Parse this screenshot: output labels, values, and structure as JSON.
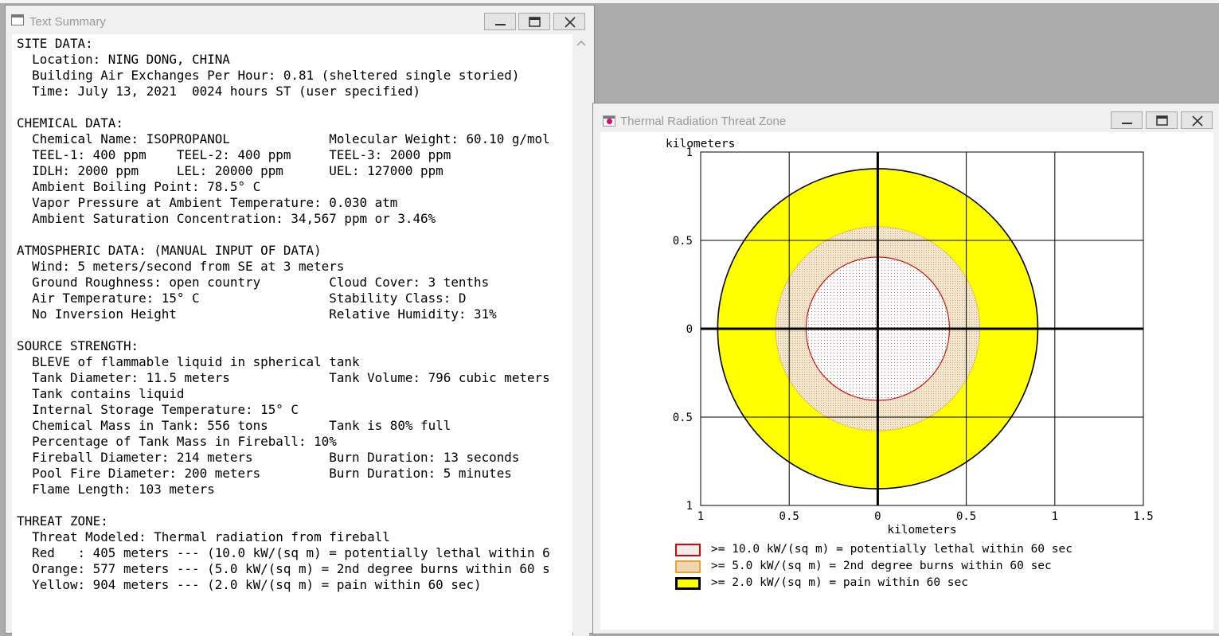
{
  "text_window": {
    "title": "Text Summary",
    "lines": [
      "SITE DATA:",
      "  Location: NING DONG, CHINA",
      "  Building Air Exchanges Per Hour: 0.81 (sheltered single storied)",
      "  Time: July 13, 2021  0024 hours ST (user specified)",
      "",
      "CHEMICAL DATA:",
      "  Chemical Name: ISOPROPANOL             Molecular Weight: 60.10 g/mol",
      "  TEEL-1: 400 ppm    TEEL-2: 400 ppm     TEEL-3: 2000 ppm",
      "  IDLH: 2000 ppm     LEL: 20000 ppm      UEL: 127000 ppm",
      "  Ambient Boiling Point: 78.5° C",
      "  Vapor Pressure at Ambient Temperature: 0.030 atm",
      "  Ambient Saturation Concentration: 34,567 ppm or 3.46%",
      "",
      "ATMOSPHERIC DATA: (MANUAL INPUT OF DATA)",
      "  Wind: 5 meters/second from SE at 3 meters",
      "  Ground Roughness: open country         Cloud Cover: 3 tenths",
      "  Air Temperature: 15° C                 Stability Class: D",
      "  No Inversion Height                    Relative Humidity: 31%",
      "",
      "SOURCE STRENGTH:",
      "  BLEVE of flammable liquid in spherical tank",
      "  Tank Diameter: 11.5 meters             Tank Volume: 796 cubic meters",
      "  Tank contains liquid",
      "  Internal Storage Temperature: 15° C",
      "  Chemical Mass in Tank: 556 tons        Tank is 80% full",
      "  Percentage of Tank Mass in Fireball: 10%",
      "  Fireball Diameter: 214 meters          Burn Duration: 13 seconds",
      "  Pool Fire Diameter: 200 meters         Burn Duration: 5 minutes",
      "  Flame Length: 103 meters",
      "",
      "THREAT ZONE:",
      "  Threat Modeled: Thermal radiation from fireball",
      "  Red   : 405 meters --- (10.0 kW/(sq m) = potentially lethal within 6",
      "  Orange: 577 meters --- (5.0 kW/(sq m) = 2nd degree burns within 60 s",
      "  Yellow: 904 meters --- (2.0 kW/(sq m) = pain within 60 sec)"
    ]
  },
  "thermal_window": {
    "title": "Thermal Radiation Threat Zone",
    "y_axis_label": "kilometers",
    "x_axis_label": "kilometers",
    "y_tick_labels": [
      "1",
      "0.5",
      "0",
      "0.5",
      "1"
    ],
    "x_tick_labels": [
      "1",
      "0.5",
      "0",
      "0.5",
      "1",
      "1.5"
    ],
    "legend": [
      {
        "label": ">= 10.0 kW/(sq m) = potentially lethal within 60 sec",
        "color": "#e00000",
        "fill": "#f7eaea"
      },
      {
        "label": ">= 5.0 kW/(sq m) = 2nd degree burns within 60 sec",
        "color": "#f0a030",
        "fill": "#ecd9b0"
      },
      {
        "label": ">= 2.0 kW/(sq m) = pain within 60 sec",
        "color": "#000000",
        "fill": "#ffff00"
      }
    ]
  },
  "chart_data": {
    "type": "area",
    "xlabel": "kilometers",
    "ylabel": "kilometers",
    "xlim": [
      -1,
      1.5
    ],
    "ylim": [
      -1,
      1
    ],
    "grid": true,
    "series": [
      {
        "name": ">= 2.0 kW/(sq m) = pain within 60 sec",
        "radius_km": 0.904,
        "center": [
          0,
          0
        ],
        "color": "#ffff00"
      },
      {
        "name": ">= 5.0 kW/(sq m) = 2nd degree burns within 60 sec",
        "radius_km": 0.577,
        "center": [
          0,
          0
        ],
        "color": "#ecd9b0"
      },
      {
        "name": ">= 10.0 kW/(sq m) = potentially lethal within 60 sec",
        "radius_km": 0.405,
        "center": [
          0,
          0
        ],
        "color": "#e00000"
      }
    ]
  }
}
